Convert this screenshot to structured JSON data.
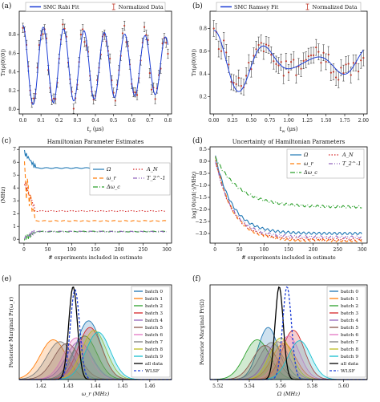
{
  "figure": {
    "panel_labels": [
      "(a)",
      "(b)",
      "(c)",
      "(d)",
      "(e)",
      "(f)"
    ]
  },
  "chart_data": [
    {
      "type": "line",
      "panel": "(a)",
      "legend_entries": [
        "SMC Rabi Fit",
        "Normalized Data"
      ],
      "legend_position": "top",
      "xlabel": "t_r (μs)",
      "xlabel_main": "t",
      "xlabel_sub": "r",
      "xlabel_unit": "(μs)",
      "ylabel": "Tr(ρ|0⟩⟨0|)",
      "xlim": [
        -0.02,
        0.82
      ],
      "ylim": [
        -0.05,
        1.05
      ],
      "xticks": [
        "0.0",
        "0.1",
        "0.2",
        "0.3",
        "0.4",
        "0.5",
        "0.6",
        "0.7",
        "0.8"
      ],
      "yticks": [
        "0.0",
        "0.2",
        "0.4",
        "0.6",
        "0.8"
      ],
      "fit": {
        "amp": 0.43,
        "offset": 0.47,
        "freq_per_us": 8.9,
        "decay": 1.1,
        "color": "#1f3fd6"
      },
      "data": {
        "n_points": 81,
        "x_start": 0.0,
        "x_end": 0.8,
        "noise": 0.07,
        "err": 0.05,
        "color": "#c0392b"
      }
    },
    {
      "type": "line",
      "panel": "(b)",
      "legend_entries": [
        "SMC Ramsey Fit",
        "Normalized Data"
      ],
      "legend_position": "top",
      "xlabel": "t_w (μs)",
      "xlabel_main": "t",
      "xlabel_sub": "w",
      "xlabel_unit": "(μs)",
      "ylabel": "Tr(ρ|0⟩⟨0|)",
      "xlim": [
        -0.05,
        2.05
      ],
      "ylim": [
        0.05,
        0.95
      ],
      "xticks": [
        "0.00",
        "0.25",
        "0.50",
        "0.75",
        "1.00",
        "1.25",
        "1.50",
        "1.75",
        "2.00"
      ],
      "yticks": [
        "0.2",
        "0.4",
        "0.6",
        "0.8"
      ],
      "fit": {
        "amp": 0.3,
        "offset": 0.5,
        "freq_per_us": 1.45,
        "decay": 0.9,
        "color": "#1f3fd6"
      },
      "data": {
        "n_points": 61,
        "x_start": 0.0,
        "x_end": 2.0,
        "noise": 0.07,
        "err": 0.07,
        "color": "#c0392b"
      }
    },
    {
      "type": "line",
      "panel": "(c)",
      "title": "Hamiltonian Parameter Estimates",
      "xlabel": "# experiments included in estimate",
      "ylabel": "(MHz)",
      "xlim": [
        -10,
        310
      ],
      "ylim": [
        -0.3,
        7.2
      ],
      "xticks": [
        "0",
        "50",
        "100",
        "150",
        "200",
        "250",
        "300"
      ],
      "yticks": [
        "0",
        "1",
        "2",
        "3",
        "4",
        "5",
        "6",
        "7"
      ],
      "legend_position": "right",
      "series": [
        {
          "name": "Ω",
          "style": "solid",
          "color": "#1f77b4",
          "final": 5.55,
          "start": 6.8
        },
        {
          "name": "ω_r",
          "style": "dashed",
          "color": "#ff7f0e",
          "final": 1.43,
          "start": 5.0
        },
        {
          "name": "Δω_c",
          "style": "dashdot",
          "color": "#2ca02c",
          "final": 0.6,
          "start": 0.0
        },
        {
          "name": "A_N",
          "style": "dotted",
          "color": "#d62728",
          "final": 2.2,
          "start": 4.5
        },
        {
          "name": "T_2^-1",
          "style": "dashdotdot",
          "color": "#9467bd",
          "final": 0.6,
          "start": 0.1
        }
      ]
    },
    {
      "type": "line",
      "panel": "(d)",
      "title": "Uncertainty of Hamiltonian Parameters",
      "xlabel": "# experiments included in estimate",
      "ylabel": "log10(std(·)/MHz)",
      "xlim": [
        -10,
        310
      ],
      "ylim": [
        -3.4,
        0.6
      ],
      "xticks": [
        "0",
        "50",
        "100",
        "150",
        "200",
        "250",
        "300"
      ],
      "yticks": [
        "−3.0",
        "−2.5",
        "−2.0",
        "−1.5",
        "−1.0",
        "−0.5",
        "0.0",
        "0.5"
      ],
      "legend_position": "top-right",
      "series": [
        {
          "name": "Ω",
          "style": "solid",
          "color": "#1f77b4",
          "final": -3.0
        },
        {
          "name": "ω_r",
          "style": "dashed",
          "color": "#ff7f0e",
          "final": -3.3
        },
        {
          "name": "Δω_c",
          "style": "dashdot",
          "color": "#2ca02c",
          "final": -1.9
        },
        {
          "name": "A_N",
          "style": "dotted",
          "color": "#d62728",
          "final": -3.25
        },
        {
          "name": "T_2^-1",
          "style": "dashdotdot",
          "color": "#9467bd",
          "final": -3.15
        }
      ]
    },
    {
      "type": "area",
      "panel": "(e)",
      "xlabel": "ω_r (MHz)",
      "ylabel": "Posterior Marginal Pr(ω_r)",
      "xlim": [
        1.412,
        1.468
      ],
      "ylim": [
        0,
        1.0
      ],
      "xticks": [
        "1.42",
        "1.43",
        "1.44",
        "1.45",
        "1.46"
      ],
      "legend_position": "right",
      "batches": [
        {
          "name": "batch 0",
          "color": "#1f77b4",
          "mean": 1.4375,
          "sd": 0.0045,
          "peak": 0.62
        },
        {
          "name": "batch 1",
          "color": "#ff7f0e",
          "mean": 1.4245,
          "sd": 0.0048,
          "peak": 0.42
        },
        {
          "name": "batch 2",
          "color": "#2ca02c",
          "mean": 1.436,
          "sd": 0.0045,
          "peak": 0.46
        },
        {
          "name": "batch 3",
          "color": "#d62728",
          "mean": 1.438,
          "sd": 0.0044,
          "peak": 0.55
        },
        {
          "name": "batch 4",
          "color": "#9467bd",
          "mean": 1.434,
          "sd": 0.0047,
          "peak": 0.4
        },
        {
          "name": "batch 5",
          "color": "#8c564b",
          "mean": 1.4295,
          "sd": 0.0048,
          "peak": 0.38
        },
        {
          "name": "batch 6",
          "color": "#e377c2",
          "mean": 1.433,
          "sd": 0.0046,
          "peak": 0.44
        },
        {
          "name": "batch 7",
          "color": "#7f7f7f",
          "mean": 1.427,
          "sd": 0.0049,
          "peak": 0.4
        },
        {
          "name": "batch 8",
          "color": "#bcbd22",
          "mean": 1.4395,
          "sd": 0.0045,
          "peak": 0.52
        },
        {
          "name": "batch 9",
          "color": "#17becf",
          "mean": 1.441,
          "sd": 0.0045,
          "peak": 0.5
        }
      ],
      "all_data": {
        "name": "all data",
        "color": "#000000",
        "mean": 1.4318,
        "sd": 0.0016,
        "peak": 0.98
      },
      "wlsf": {
        "name": "WLSF",
        "color": "#1f3fd6",
        "mean": 1.4325,
        "sd": 0.0017,
        "peak": 0.95
      }
    },
    {
      "type": "area",
      "panel": "(f)",
      "xlabel": "Ω (MHz)",
      "ylabel": "Posterior Marginal Pr(Ω)",
      "xlim": [
        5.515,
        5.615
      ],
      "ylim": [
        0,
        1.0
      ],
      "xticks": [
        "5.52",
        "5.54",
        "5.56",
        "5.58",
        "5.60"
      ],
      "legend_position": "right",
      "batches": [
        {
          "name": "batch 0",
          "color": "#1f77b4",
          "mean": 5.552,
          "sd": 0.0065,
          "peak": 0.55
        },
        {
          "name": "batch 1",
          "color": "#ff7f0e",
          "mean": 5.562,
          "sd": 0.0075,
          "peak": 0.38
        },
        {
          "name": "batch 2",
          "color": "#2ca02c",
          "mean": 5.545,
          "sd": 0.008,
          "peak": 0.42
        },
        {
          "name": "batch 3",
          "color": "#d62728",
          "mean": 5.568,
          "sd": 0.007,
          "peak": 0.52
        },
        {
          "name": "batch 4",
          "color": "#9467bd",
          "mean": 5.558,
          "sd": 0.0072,
          "peak": 0.4
        },
        {
          "name": "batch 5",
          "color": "#8c564b",
          "mean": 5.55,
          "sd": 0.0078,
          "peak": 0.36
        },
        {
          "name": "batch 6",
          "color": "#e377c2",
          "mean": 5.565,
          "sd": 0.007,
          "peak": 0.46
        },
        {
          "name": "batch 7",
          "color": "#7f7f7f",
          "mean": 5.554,
          "sd": 0.0075,
          "peak": 0.39
        },
        {
          "name": "batch 8",
          "color": "#bcbd22",
          "mean": 5.56,
          "sd": 0.007,
          "peak": 0.44
        },
        {
          "name": "batch 9",
          "color": "#17becf",
          "mean": 5.572,
          "sd": 0.0072,
          "peak": 0.41
        }
      ],
      "all_data": {
        "name": "all data",
        "color": "#000000",
        "mean": 5.559,
        "sd": 0.0026,
        "peak": 0.98
      },
      "wlsf": {
        "name": "WLSF",
        "color": "#1f3fd6",
        "mean": 5.564,
        "sd": 0.0028,
        "peak": 0.98
      }
    }
  ]
}
